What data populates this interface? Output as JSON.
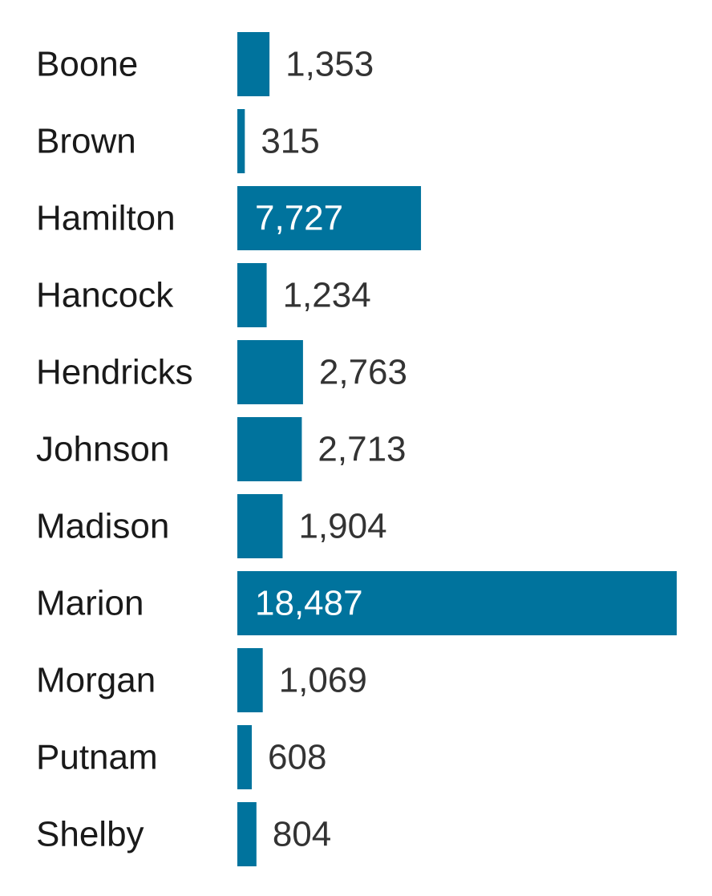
{
  "chart_data": {
    "type": "bar",
    "orientation": "horizontal",
    "title": "",
    "xlabel": "",
    "ylabel": "",
    "categories": [
      "Boone",
      "Brown",
      "Hamilton",
      "Hancock",
      "Hendricks",
      "Johnson",
      "Madison",
      "Marion",
      "Morgan",
      "Putnam",
      "Shelby"
    ],
    "values": [
      1353,
      315,
      7727,
      1234,
      2763,
      2713,
      1904,
      18487,
      1069,
      608,
      804
    ],
    "value_labels": [
      "1,353",
      "315",
      "7,727",
      "1,234",
      "2,763",
      "2,713",
      "1,904",
      "18,487",
      "1,069",
      "608",
      "804"
    ],
    "xlim": [
      0,
      18487
    ],
    "grid": false,
    "legend": "none",
    "colors": {
      "bar": "#00739d",
      "label_outside": "#333333",
      "label_inside": "#ffffff",
      "category_text": "#1a1a1a"
    }
  }
}
